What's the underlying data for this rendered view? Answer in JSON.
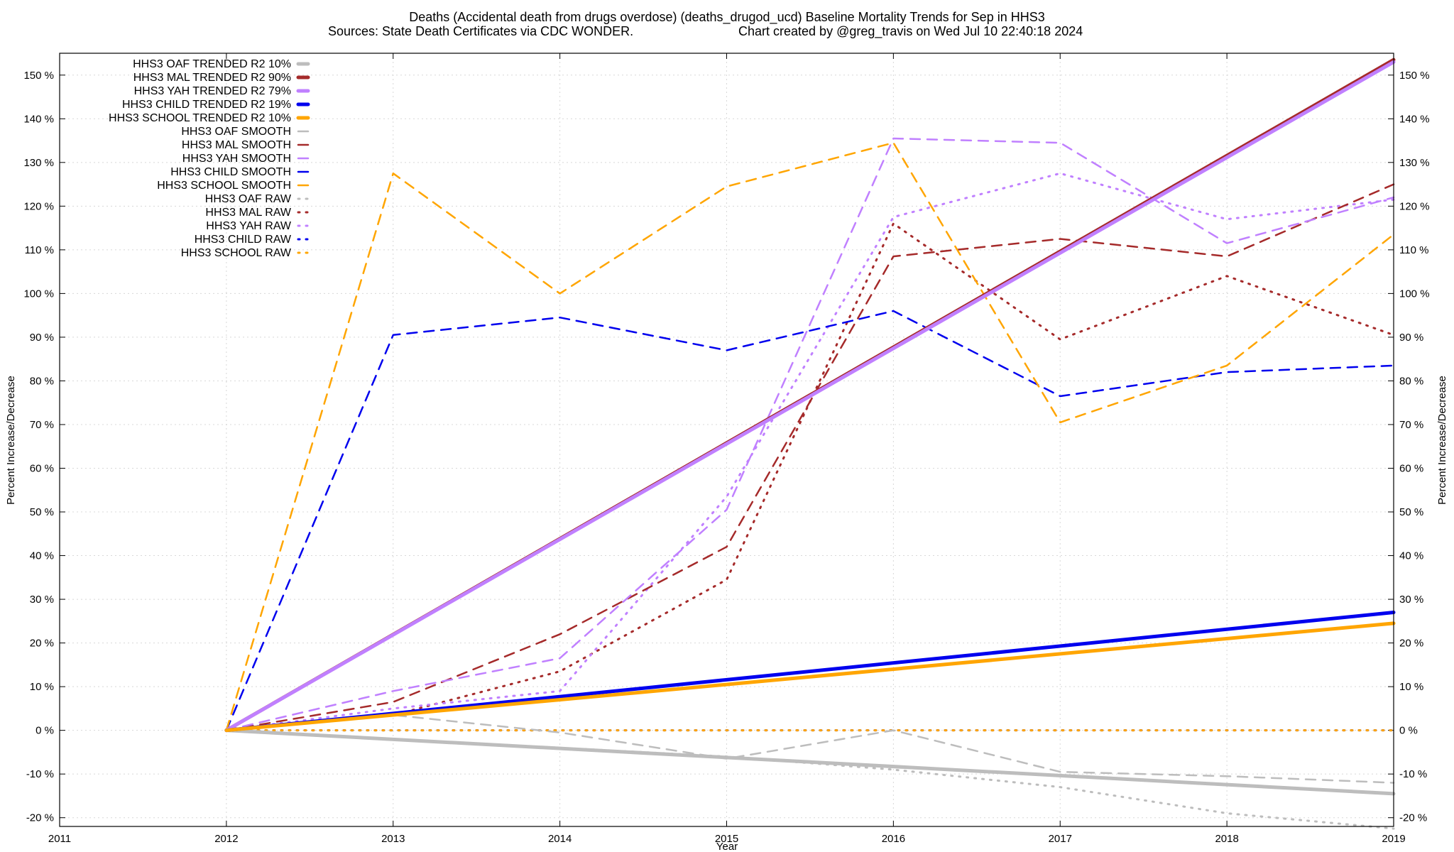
{
  "chart_data": {
    "type": "line",
    "title_line1": "Deaths (Accidental death from drugs overdose) (deaths_drugod_ucd)  Baseline Mortality Trends for Sep in HHS3",
    "title_line2_left": "Sources: State Death Certificates via CDC WONDER.",
    "title_line2_right": "Chart created by @greg_travis on Wed Jul 10 22:40:18 2024",
    "xlabel": "Year",
    "ylabel_left": "Percent Increase/Decrease",
    "ylabel_right": "Percent Increase/Decrease",
    "xlim": [
      2011,
      2019
    ],
    "ylim": [
      -22,
      155
    ],
    "x_ticks": [
      2011,
      2012,
      2013,
      2014,
      2015,
      2016,
      2017,
      2018,
      2019
    ],
    "x_tick_labels": [
      "2011",
      "2012",
      "2013",
      "2014",
      "2015",
      "2016",
      "2017",
      "2018",
      "2019"
    ],
    "y_ticks": [
      -20,
      -10,
      0,
      10,
      20,
      30,
      40,
      50,
      60,
      70,
      80,
      90,
      100,
      110,
      120,
      130,
      140,
      150
    ],
    "y_tick_labels": [
      "-20 %",
      "-10 %",
      "0 %",
      "10 %",
      "20 %",
      "30 %",
      "40 %",
      "50 %",
      "60 %",
      "70 %",
      "80 %",
      "90 %",
      "100 %",
      "110 %",
      "120 %",
      "130 %",
      "140 %",
      "150 %"
    ],
    "grid": true,
    "legend_position": "top-left",
    "colors": {
      "OAF": "#bdbdbd",
      "MAL": "#a52a2a",
      "YAH": "#c080ff",
      "CHILD": "#0000ee",
      "SCHOOL": "#ffa500"
    },
    "series": [
      {
        "name": "HHS3 OAF TRENDED R2  10%",
        "group": "OAF",
        "style": "trend",
        "x": [
          2012,
          2019
        ],
        "y": [
          0,
          -14.5
        ]
      },
      {
        "name": "HHS3 MAL TRENDED R2  90%",
        "group": "MAL",
        "style": "trend",
        "x": [
          2012,
          2019
        ],
        "y": [
          0,
          153.5
        ]
      },
      {
        "name": "HHS3 YAH TRENDED R2  79%",
        "group": "YAH",
        "style": "trend",
        "x": [
          2012,
          2019
        ],
        "y": [
          0,
          153
        ]
      },
      {
        "name": "HHS3 CHILD TRENDED R2  19%",
        "group": "CHILD",
        "style": "trend",
        "x": [
          2012,
          2019
        ],
        "y": [
          0,
          27
        ]
      },
      {
        "name": "HHS3 SCHOOL TRENDED R2  10%",
        "group": "SCHOOL",
        "style": "trend",
        "x": [
          2012,
          2019
        ],
        "y": [
          0,
          24.5
        ]
      },
      {
        "name": "HHS3 OAF SMOOTH",
        "group": "OAF",
        "style": "smooth",
        "x": [
          2012,
          2013,
          2014,
          2015,
          2016,
          2017,
          2018,
          2019
        ],
        "y": [
          0,
          3.5,
          -0.5,
          -6.5,
          0,
          -9.5,
          -10.5,
          -12
        ]
      },
      {
        "name": "HHS3 MAL SMOOTH",
        "group": "MAL",
        "style": "smooth",
        "x": [
          2012,
          2013,
          2014,
          2015,
          2016,
          2017,
          2018,
          2019
        ],
        "y": [
          0,
          6.5,
          22,
          42,
          108.5,
          112.5,
          108.5,
          125
        ]
      },
      {
        "name": "HHS3 YAH SMOOTH",
        "group": "YAH",
        "style": "smooth",
        "x": [
          2012,
          2013,
          2014,
          2015,
          2016,
          2017,
          2018,
          2019
        ],
        "y": [
          0,
          9,
          16.5,
          50.5,
          135.5,
          134.5,
          111.5,
          122
        ]
      },
      {
        "name": "HHS3 CHILD SMOOTH",
        "group": "CHILD",
        "style": "smooth",
        "x": [
          2012,
          2013,
          2014,
          2015,
          2016,
          2017,
          2018,
          2019
        ],
        "y": [
          0,
          90.5,
          94.5,
          87,
          96,
          76.5,
          82,
          83.5
        ]
      },
      {
        "name": "HHS3 SCHOOL SMOOTH",
        "group": "SCHOOL",
        "style": "smooth",
        "x": [
          2012,
          2013,
          2014,
          2015,
          2016,
          2017,
          2018,
          2019
        ],
        "y": [
          0,
          127.5,
          100,
          124.5,
          134.5,
          70.5,
          83.5,
          113.5
        ]
      },
      {
        "name": "HHS3 OAF RAW",
        "group": "OAF",
        "style": "raw",
        "x": [
          2012,
          2013,
          2014,
          2015,
          2016,
          2017,
          2018,
          2019
        ],
        "y": [
          0,
          -2,
          -4,
          -6,
          -9,
          -13,
          -19,
          -22.5
        ]
      },
      {
        "name": "HHS3 MAL RAW",
        "group": "MAL",
        "style": "raw",
        "x": [
          2012,
          2013,
          2014,
          2015,
          2016,
          2017,
          2018,
          2019
        ],
        "y": [
          0,
          3.5,
          13.5,
          34.5,
          116,
          89.5,
          104,
          90.5
        ]
      },
      {
        "name": "HHS3 YAH RAW",
        "group": "YAH",
        "style": "raw",
        "x": [
          2012,
          2013,
          2014,
          2015,
          2016,
          2017,
          2018,
          2019
        ],
        "y": [
          0,
          5,
          9,
          53.5,
          117.5,
          127.5,
          117,
          121.5
        ]
      },
      {
        "name": "HHS3 CHILD RAW",
        "group": "CHILD",
        "style": "raw",
        "x": [
          2012,
          2013,
          2014,
          2015,
          2016,
          2017,
          2018,
          2019
        ],
        "y": [
          0,
          0,
          0,
          0,
          0,
          0,
          0,
          0
        ]
      },
      {
        "name": "HHS3 SCHOOL RAW",
        "group": "SCHOOL",
        "style": "raw",
        "x": [
          2012,
          2013,
          2014,
          2015,
          2016,
          2017,
          2018,
          2019
        ],
        "y": [
          0,
          0,
          0,
          0,
          0,
          0,
          0,
          0
        ]
      }
    ]
  }
}
